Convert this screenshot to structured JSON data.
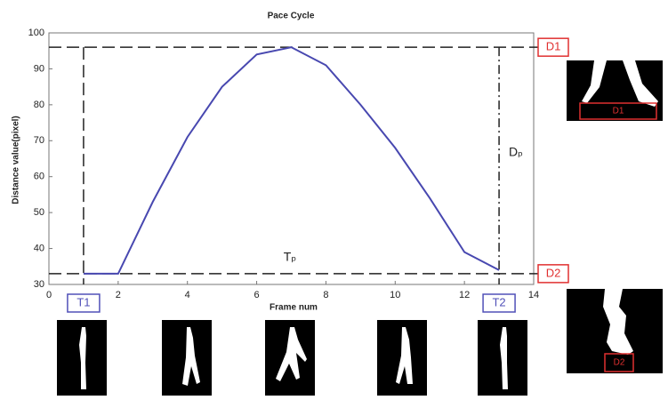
{
  "chart_data": {
    "type": "line",
    "title": "Pace Cycle",
    "x_label": "Frame num",
    "y_label": "Distance value(pixel)",
    "x": [
      1,
      2,
      3,
      4,
      5,
      6,
      7,
      8,
      9,
      10,
      11,
      12,
      13
    ],
    "values": [
      33,
      33,
      53,
      71,
      85,
      94,
      96,
      91,
      80,
      68,
      54,
      39,
      34
    ],
    "color": "#4848b0",
    "xlim": [
      0,
      14
    ],
    "xticks": [
      0,
      2,
      4,
      6,
      8,
      10,
      12,
      14
    ],
    "ylim": [
      30,
      100
    ],
    "yticks": [
      30,
      40,
      50,
      60,
      70,
      80,
      90,
      100
    ],
    "hlines": [
      {
        "value": 96,
        "label": "D1"
      },
      {
        "value": 33,
        "label": "D2"
      }
    ],
    "vlines": [
      {
        "value": 1,
        "label": "T1"
      },
      {
        "value": 13,
        "label": "T2"
      }
    ],
    "annotations": [
      "Tₚ",
      "Dₚ"
    ]
  }
}
